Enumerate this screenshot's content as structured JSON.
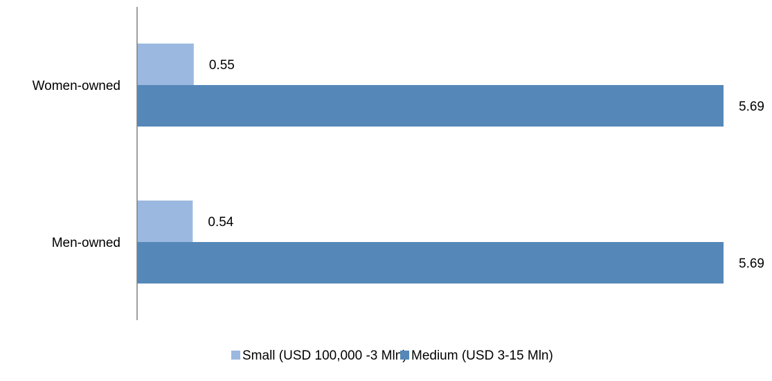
{
  "chart_data": {
    "type": "bar",
    "orientation": "horizontal",
    "title": "",
    "xlabel": "",
    "ylabel": "",
    "categories": [
      "Women-owned",
      "Men-owned"
    ],
    "series": [
      {
        "name": "Small (USD 100,000 -3 Mln)",
        "values": [
          0.55,
          0.54
        ],
        "labels": [
          "0.55",
          "0.54"
        ],
        "color": "#9BB9E0"
      },
      {
        "name": "Medium (USD 3-15 Mln)",
        "values": [
          5.69,
          5.69
        ],
        "labels": [
          "5.69",
          "5.69"
        ],
        "color": "#5588B8"
      }
    ],
    "xlim": [
      0,
      5.69
    ],
    "grid": false,
    "legend_position": "bottom"
  }
}
